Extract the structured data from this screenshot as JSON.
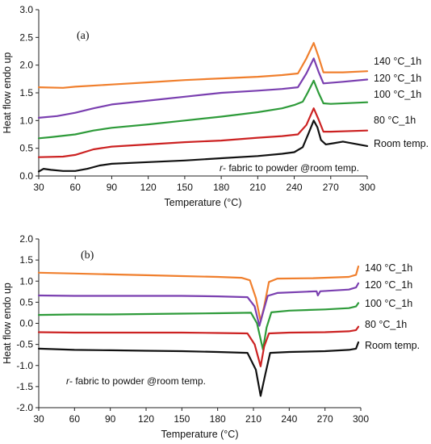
{
  "chart_data": [
    {
      "type": "line",
      "panel_label": "(a)",
      "xlabel": "Temperature (°C)",
      "ylabel": "Heat flow endo up",
      "xlim": [
        30,
        300
      ],
      "ylim": [
        0.0,
        3.0
      ],
      "xticks": [
        "30",
        "60",
        "90",
        "120",
        "150",
        "180",
        "210",
        "240",
        "270",
        "300"
      ],
      "yticks": [
        "0.0",
        "0.5",
        "1.0",
        "1.5",
        "2.0",
        "2.5",
        "3.0"
      ],
      "annotation": "r- fabric to powder @room temp.",
      "grid": false,
      "legend": "labels at right end of curves",
      "series": [
        {
          "name": "Room temp.",
          "color": "#111111",
          "points": [
            [
              30,
              0.08
            ],
            [
              34,
              0.13
            ],
            [
              40,
              0.11
            ],
            [
              50,
              0.09
            ],
            [
              60,
              0.09
            ],
            [
              70,
              0.13
            ],
            [
              80,
              0.19
            ],
            [
              90,
              0.22
            ],
            [
              120,
              0.25
            ],
            [
              150,
              0.28
            ],
            [
              180,
              0.32
            ],
            [
              210,
              0.36
            ],
            [
              230,
              0.4
            ],
            [
              240,
              0.43
            ],
            [
              247,
              0.52
            ],
            [
              252,
              0.78
            ],
            [
              256,
              1.0
            ],
            [
              259,
              0.88
            ],
            [
              262,
              0.65
            ],
            [
              266,
              0.57
            ],
            [
              272,
              0.59
            ],
            [
              280,
              0.62
            ],
            [
              290,
              0.58
            ],
            [
              300,
              0.54
            ]
          ]
        },
        {
          "name": "80 °C_1h",
          "color": "#cc2222",
          "points": [
            [
              30,
              0.34
            ],
            [
              50,
              0.35
            ],
            [
              60,
              0.38
            ],
            [
              75,
              0.48
            ],
            [
              90,
              0.53
            ],
            [
              120,
              0.57
            ],
            [
              150,
              0.61
            ],
            [
              180,
              0.64
            ],
            [
              210,
              0.69
            ],
            [
              230,
              0.72
            ],
            [
              243,
              0.75
            ],
            [
              250,
              0.92
            ],
            [
              256,
              1.22
            ],
            [
              260,
              1.02
            ],
            [
              264,
              0.8
            ],
            [
              270,
              0.8
            ],
            [
              300,
              0.82
            ]
          ]
        },
        {
          "name": "100 °C_1h",
          "color": "#2e9b3a",
          "points": [
            [
              30,
              0.68
            ],
            [
              40,
              0.7
            ],
            [
              60,
              0.75
            ],
            [
              75,
              0.82
            ],
            [
              90,
              0.87
            ],
            [
              120,
              0.93
            ],
            [
              150,
              1.0
            ],
            [
              180,
              1.07
            ],
            [
              210,
              1.15
            ],
            [
              230,
              1.22
            ],
            [
              240,
              1.28
            ],
            [
              247,
              1.34
            ],
            [
              251,
              1.5
            ],
            [
              256,
              1.72
            ],
            [
              260,
              1.5
            ],
            [
              264,
              1.31
            ],
            [
              270,
              1.3
            ],
            [
              300,
              1.33
            ]
          ]
        },
        {
          "name": "120 °C_1h",
          "color": "#7a3fb0",
          "points": [
            [
              30,
              1.05
            ],
            [
              45,
              1.08
            ],
            [
              60,
              1.14
            ],
            [
              75,
              1.22
            ],
            [
              90,
              1.29
            ],
            [
              120,
              1.36
            ],
            [
              150,
              1.43
            ],
            [
              180,
              1.5
            ],
            [
              210,
              1.54
            ],
            [
              230,
              1.57
            ],
            [
              243,
              1.6
            ],
            [
              250,
              1.85
            ],
            [
              256,
              2.12
            ],
            [
              260,
              1.88
            ],
            [
              264,
              1.67
            ],
            [
              280,
              1.7
            ],
            [
              300,
              1.74
            ]
          ]
        },
        {
          "name": "140 °C_1h",
          "color": "#f07f2d",
          "points": [
            [
              30,
              1.6
            ],
            [
              50,
              1.59
            ],
            [
              60,
              1.61
            ],
            [
              90,
              1.65
            ],
            [
              120,
              1.69
            ],
            [
              150,
              1.73
            ],
            [
              180,
              1.76
            ],
            [
              210,
              1.79
            ],
            [
              230,
              1.82
            ],
            [
              243,
              1.85
            ],
            [
              250,
              2.12
            ],
            [
              256,
              2.4
            ],
            [
              260,
              2.15
            ],
            [
              264,
              1.87
            ],
            [
              280,
              1.87
            ],
            [
              300,
              1.89
            ]
          ]
        }
      ]
    },
    {
      "type": "line",
      "panel_label": "(b)",
      "xlabel": "Temperature (°C)",
      "ylabel": "Heat flow endo up",
      "xlim": [
        30,
        300
      ],
      "ylim": [
        -2.0,
        2.0
      ],
      "xticks": [
        "30",
        "60",
        "90",
        "120",
        "150",
        "180",
        "210",
        "240",
        "270",
        "300"
      ],
      "yticks": [
        "-2.0",
        "-1.5",
        "-1.0",
        "-0.5",
        "0.0",
        "0.5",
        "1.0",
        "1.5",
        "2.0"
      ],
      "annotation": "r- fabric to powder @room temp.",
      "grid": false,
      "legend": "labels at right end of curves",
      "series": [
        {
          "name": "140 °C_1h",
          "color": "#f07f2d",
          "points": [
            [
              30,
              1.2
            ],
            [
              60,
              1.18
            ],
            [
              90,
              1.16
            ],
            [
              120,
              1.14
            ],
            [
              150,
              1.12
            ],
            [
              180,
              1.1
            ],
            [
              200,
              1.08
            ],
            [
              207,
              1.02
            ],
            [
              212,
              0.6
            ],
            [
              216,
              0.05
            ],
            [
              219,
              0.4
            ],
            [
              223,
              0.98
            ],
            [
              230,
              1.06
            ],
            [
              260,
              1.07
            ],
            [
              290,
              1.1
            ],
            [
              296,
              1.15
            ],
            [
              298,
              1.35
            ]
          ]
        },
        {
          "name": "120 °C_1h",
          "color": "#7a3fb0",
          "points": [
            [
              30,
              0.66
            ],
            [
              60,
              0.65
            ],
            [
              90,
              0.65
            ],
            [
              120,
              0.65
            ],
            [
              150,
              0.65
            ],
            [
              180,
              0.64
            ],
            [
              205,
              0.62
            ],
            [
              211,
              0.4
            ],
            [
              215,
              -0.06
            ],
            [
              218,
              0.25
            ],
            [
              222,
              0.65
            ],
            [
              230,
              0.72
            ],
            [
              255,
              0.75
            ],
            [
              263,
              0.76
            ],
            [
              264,
              0.66
            ],
            [
              266,
              0.76
            ],
            [
              290,
              0.8
            ],
            [
              296,
              0.85
            ],
            [
              298,
              0.95
            ]
          ]
        },
        {
          "name": "100 °C_1h",
          "color": "#2e9b3a",
          "points": [
            [
              30,
              0.2
            ],
            [
              60,
              0.21
            ],
            [
              90,
              0.21
            ],
            [
              120,
              0.22
            ],
            [
              150,
              0.23
            ],
            [
              180,
              0.24
            ],
            [
              208,
              0.25
            ],
            [
              213,
              0.0
            ],
            [
              218,
              -0.62
            ],
            [
              221,
              -0.1
            ],
            [
              225,
              0.26
            ],
            [
              240,
              0.3
            ],
            [
              270,
              0.33
            ],
            [
              290,
              0.36
            ],
            [
              296,
              0.4
            ],
            [
              298,
              0.48
            ]
          ]
        },
        {
          "name": "80 °C_1h",
          "color": "#cc2222",
          "points": [
            [
              30,
              -0.21
            ],
            [
              60,
              -0.22
            ],
            [
              90,
              -0.22
            ],
            [
              120,
              -0.22
            ],
            [
              150,
              -0.22
            ],
            [
              180,
              -0.23
            ],
            [
              205,
              -0.24
            ],
            [
              211,
              -0.5
            ],
            [
              216,
              -1.02
            ],
            [
              219,
              -0.55
            ],
            [
              223,
              -0.24
            ],
            [
              240,
              -0.22
            ],
            [
              270,
              -0.21
            ],
            [
              290,
              -0.19
            ],
            [
              296,
              -0.16
            ],
            [
              298,
              -0.08
            ]
          ]
        },
        {
          "name": "Room temp.",
          "color": "#111111",
          "points": [
            [
              30,
              -0.6
            ],
            [
              60,
              -0.63
            ],
            [
              90,
              -0.64
            ],
            [
              120,
              -0.65
            ],
            [
              150,
              -0.66
            ],
            [
              180,
              -0.68
            ],
            [
              205,
              -0.7
            ],
            [
              212,
              -1.1
            ],
            [
              216,
              -1.72
            ],
            [
              220,
              -1.2
            ],
            [
              224,
              -0.7
            ],
            [
              240,
              -0.68
            ],
            [
              270,
              -0.66
            ],
            [
              290,
              -0.63
            ],
            [
              296,
              -0.6
            ],
            [
              298,
              -0.45
            ]
          ]
        }
      ]
    }
  ]
}
